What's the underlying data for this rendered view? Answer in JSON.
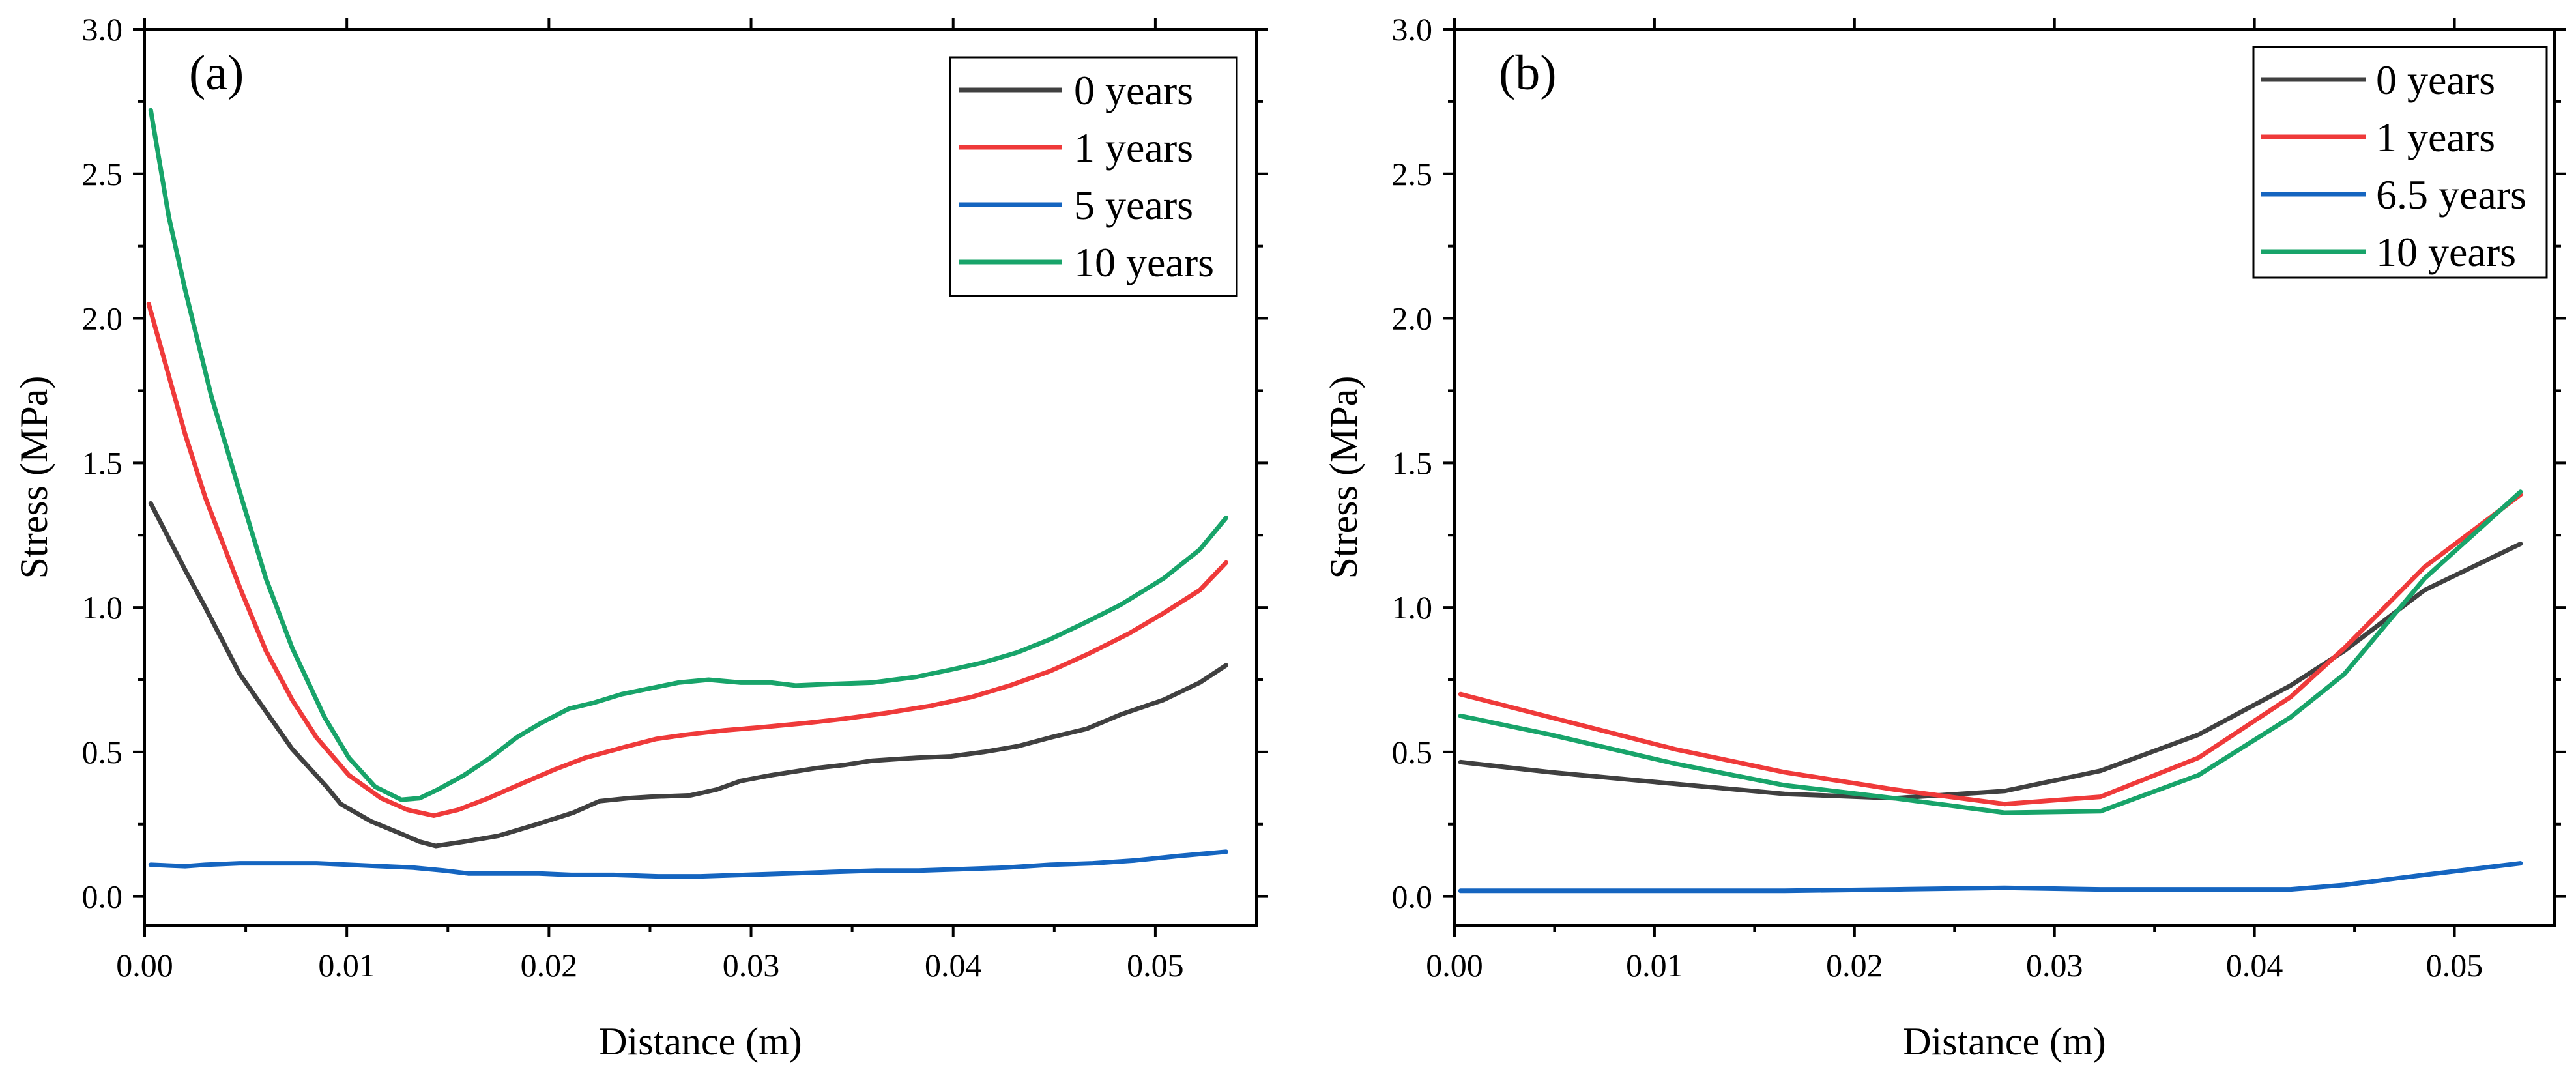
{
  "chart_data": [
    {
      "type": "line",
      "panel_label": "(a)",
      "xlabel": "Distance (m)",
      "ylabel": "Stress (MPa)",
      "xlim": [
        0,
        0.055
      ],
      "ylim": [
        -0.1,
        3.0
      ],
      "xticks": [
        "0.00",
        "0.01",
        "0.02",
        "0.03",
        "0.04",
        "0.05"
      ],
      "yticks": [
        "0.0",
        "0.5",
        "1.0",
        "1.5",
        "2.0",
        "2.5",
        "3.0"
      ],
      "legend_position": "top-right",
      "grid": false,
      "series": [
        {
          "name": "0 years",
          "color": "#404040",
          "x": [
            0.0003,
            0.002,
            0.003,
            0.0047,
            0.006,
            0.0073,
            0.009,
            0.0097,
            0.0112,
            0.0126,
            0.0136,
            0.0144,
            0.0158,
            0.0175,
            0.0194,
            0.0212,
            0.0225,
            0.0239,
            0.025,
            0.027,
            0.0283,
            0.0295,
            0.031,
            0.0333,
            0.0346,
            0.036,
            0.0382,
            0.0399,
            0.0415,
            0.0432,
            0.0448,
            0.0466,
            0.0483,
            0.0504,
            0.0522,
            0.0535
          ],
          "y": [
            1.36,
            1.13,
            1.0,
            0.77,
            0.64,
            0.51,
            0.38,
            0.32,
            0.26,
            0.22,
            0.19,
            0.175,
            0.19,
            0.21,
            0.25,
            0.29,
            0.33,
            0.34,
            0.345,
            0.35,
            0.37,
            0.4,
            0.42,
            0.445,
            0.455,
            0.47,
            0.48,
            0.485,
            0.5,
            0.52,
            0.55,
            0.58,
            0.63,
            0.68,
            0.74,
            0.8
          ]
        },
        {
          "name": "1 years",
          "color": "#ef3a3a",
          "x": [
            0.0002,
            0.0012,
            0.002,
            0.003,
            0.0047,
            0.006,
            0.0073,
            0.0085,
            0.0101,
            0.0117,
            0.013,
            0.0143,
            0.0155,
            0.017,
            0.0183,
            0.0203,
            0.0218,
            0.0239,
            0.0253,
            0.0268,
            0.0287,
            0.0304,
            0.0327,
            0.0346,
            0.0367,
            0.0389,
            0.0409,
            0.0428,
            0.0448,
            0.0467,
            0.0487,
            0.0504,
            0.0522,
            0.0535
          ],
          "y": [
            2.05,
            1.8,
            1.6,
            1.38,
            1.07,
            0.85,
            0.68,
            0.55,
            0.42,
            0.34,
            0.3,
            0.28,
            0.3,
            0.34,
            0.38,
            0.44,
            0.48,
            0.52,
            0.545,
            0.56,
            0.575,
            0.585,
            0.6,
            0.615,
            0.635,
            0.66,
            0.69,
            0.73,
            0.78,
            0.84,
            0.91,
            0.98,
            1.06,
            1.155
          ]
        },
        {
          "name": "5 years",
          "color": "#1565c0",
          "x": [
            0.0003,
            0.002,
            0.003,
            0.0047,
            0.006,
            0.0085,
            0.0101,
            0.0117,
            0.0133,
            0.0148,
            0.016,
            0.0175,
            0.0195,
            0.0211,
            0.0232,
            0.0254,
            0.0275,
            0.0297,
            0.0318,
            0.034,
            0.0362,
            0.0383,
            0.0405,
            0.0426,
            0.0448,
            0.0469,
            0.049,
            0.0511,
            0.0535
          ],
          "y": [
            0.11,
            0.105,
            0.11,
            0.115,
            0.115,
            0.115,
            0.11,
            0.105,
            0.1,
            0.09,
            0.08,
            0.08,
            0.08,
            0.075,
            0.075,
            0.07,
            0.07,
            0.075,
            0.08,
            0.085,
            0.09,
            0.09,
            0.095,
            0.1,
            0.11,
            0.115,
            0.125,
            0.14,
            0.155
          ]
        },
        {
          "name": "10 years",
          "color": "#18a46a",
          "x": [
            0.0003,
            0.0012,
            0.002,
            0.0033,
            0.0047,
            0.006,
            0.0073,
            0.0089,
            0.0101,
            0.0114,
            0.0127,
            0.0136,
            0.0145,
            0.0158,
            0.0171,
            0.0184,
            0.0196,
            0.021,
            0.0222,
            0.0236,
            0.025,
            0.0264,
            0.0279,
            0.0295,
            0.031,
            0.0322,
            0.0339,
            0.036,
            0.0382,
            0.0399,
            0.0415,
            0.0432,
            0.0448,
            0.0466,
            0.0483,
            0.0504,
            0.0522,
            0.0535
          ],
          "y": [
            2.72,
            2.35,
            2.1,
            1.73,
            1.4,
            1.1,
            0.86,
            0.62,
            0.48,
            0.38,
            0.335,
            0.34,
            0.37,
            0.42,
            0.48,
            0.55,
            0.6,
            0.65,
            0.67,
            0.7,
            0.72,
            0.74,
            0.75,
            0.74,
            0.74,
            0.73,
            0.735,
            0.74,
            0.76,
            0.785,
            0.81,
            0.845,
            0.89,
            0.95,
            1.01,
            1.1,
            1.2,
            1.31
          ]
        }
      ]
    },
    {
      "type": "line",
      "panel_label": "(b)",
      "xlabel": "Distance (m)",
      "ylabel": "Stress (MPa)",
      "xlim": [
        0,
        0.055
      ],
      "ylim": [
        -0.1,
        3.0
      ],
      "xticks": [
        "0.00",
        "0.01",
        "0.02",
        "0.03",
        "0.04",
        "0.05"
      ],
      "yticks": [
        "0.0",
        "0.5",
        "1.0",
        "1.5",
        "2.0",
        "2.5",
        "3.0"
      ],
      "legend_position": "top-right",
      "grid": false,
      "series": [
        {
          "name": "0 years",
          "color": "#404040",
          "x": [
            0.0003,
            0.0048,
            0.011,
            0.0165,
            0.022,
            0.0275,
            0.0323,
            0.0372,
            0.0418,
            0.0445,
            0.0485,
            0.0533
          ],
          "y": [
            0.465,
            0.43,
            0.39,
            0.355,
            0.34,
            0.365,
            0.435,
            0.56,
            0.73,
            0.85,
            1.06,
            1.22
          ]
        },
        {
          "name": "1 years",
          "color": "#ef3a3a",
          "x": [
            0.0003,
            0.0048,
            0.011,
            0.0165,
            0.022,
            0.0275,
            0.0323,
            0.0372,
            0.0418,
            0.0445,
            0.0485,
            0.0533
          ],
          "y": [
            0.7,
            0.62,
            0.51,
            0.43,
            0.37,
            0.32,
            0.345,
            0.48,
            0.69,
            0.86,
            1.14,
            1.39
          ]
        },
        {
          "name": "6.5 years",
          "color": "#1565c0",
          "x": [
            0.0003,
            0.0048,
            0.011,
            0.0165,
            0.022,
            0.0275,
            0.0323,
            0.0372,
            0.0418,
            0.0445,
            0.0485,
            0.0533
          ],
          "y": [
            0.02,
            0.02,
            0.02,
            0.02,
            0.025,
            0.03,
            0.025,
            0.025,
            0.025,
            0.04,
            0.075,
            0.115
          ]
        },
        {
          "name": "10 years",
          "color": "#18a46a",
          "x": [
            0.0003,
            0.0048,
            0.011,
            0.0165,
            0.022,
            0.0275,
            0.0323,
            0.0372,
            0.0418,
            0.0445,
            0.0485,
            0.0533
          ],
          "y": [
            0.625,
            0.56,
            0.46,
            0.385,
            0.34,
            0.29,
            0.295,
            0.42,
            0.62,
            0.77,
            1.1,
            1.4
          ]
        }
      ]
    }
  ]
}
